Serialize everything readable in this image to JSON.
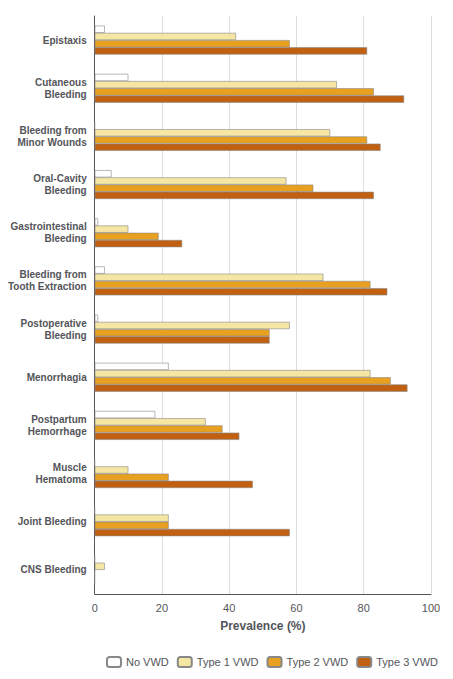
{
  "chart_data": {
    "type": "bar",
    "orientation": "horizontal",
    "xlabel": "Prevalence (%)",
    "categories": [
      "CNS Bleeding",
      "Joint Bleeding",
      "Muscle\nHematoma",
      "Postpartum\nHemorrhage",
      "Menorrhagia",
      "Postoperative\nBleeding",
      "Bleeding from\nTooth Extraction",
      "Gastrointestinal\nBleeding",
      "Oral-Cavity\nBleeding",
      "Bleeding from\nMinor Wounds",
      "Cutaneous\nBleeding",
      "Epistaxis"
    ],
    "series": [
      {
        "name": "No VWD",
        "color": "#ffffff",
        "values": [
          0,
          0,
          0,
          18,
          22,
          1,
          3,
          1,
          5,
          0,
          10,
          3
        ]
      },
      {
        "name": "Type 1 VWD",
        "color": "#f5e6a3",
        "values": [
          3,
          22,
          10,
          33,
          82,
          58,
          68,
          10,
          57,
          70,
          72,
          42
        ]
      },
      {
        "name": "Type 2 VWD",
        "color": "#e8a020",
        "values": [
          0,
          22,
          22,
          38,
          88,
          52,
          82,
          19,
          65,
          81,
          83,
          58
        ]
      },
      {
        "name": "Type 3 VWD",
        "color": "#c06010",
        "values": [
          0,
          58,
          47,
          43,
          93,
          52,
          87,
          26,
          83,
          85,
          92,
          81
        ]
      }
    ],
    "xlim": [
      0,
      100
    ],
    "xticks": [
      0,
      20,
      40,
      60,
      80,
      100
    ],
    "grid": true,
    "legend": "lower right"
  }
}
